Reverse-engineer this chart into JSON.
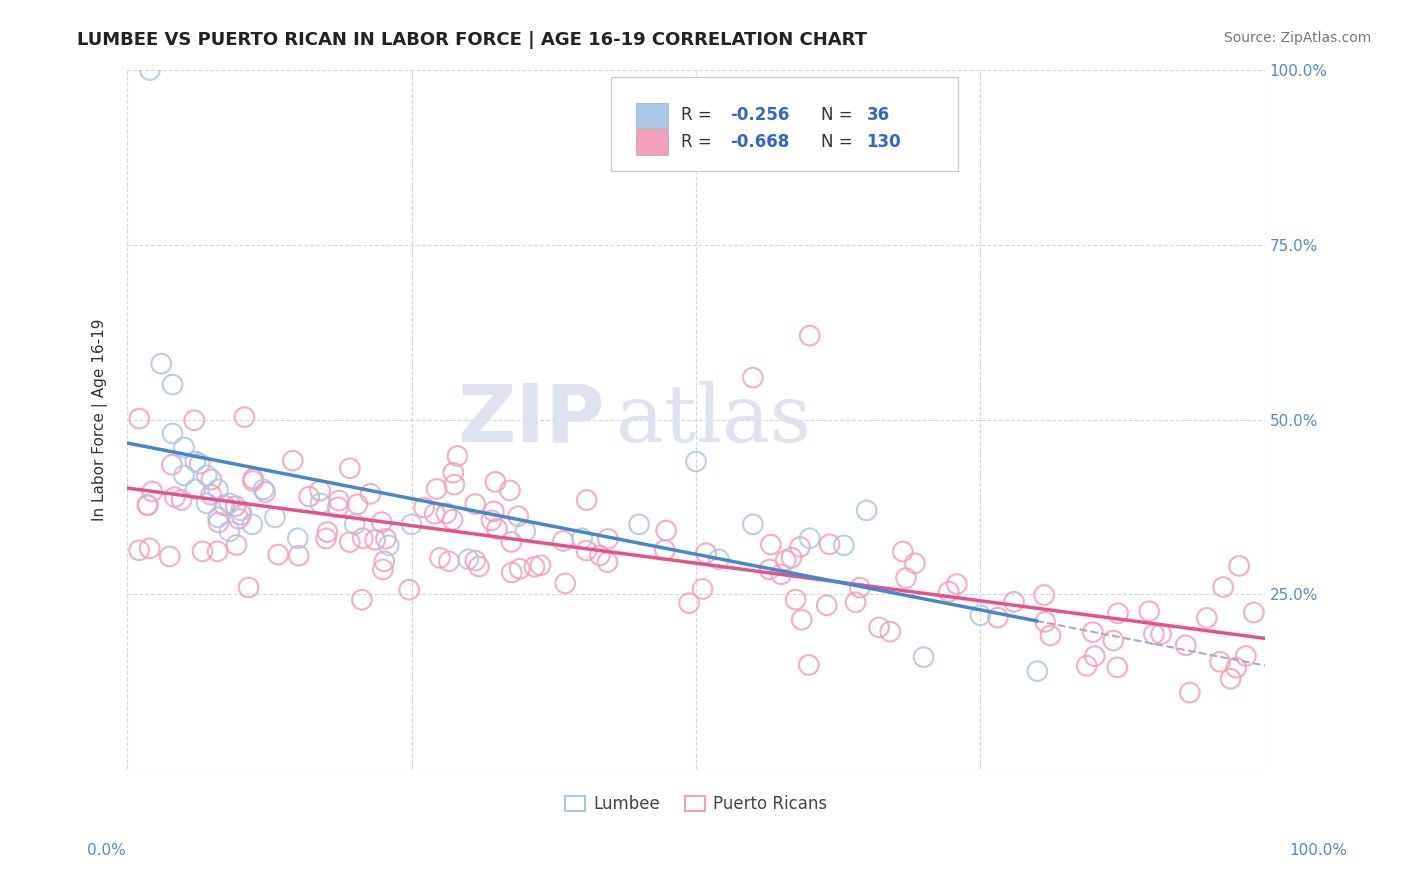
{
  "title": "LUMBEE VS PUERTO RICAN IN LABOR FORCE | AGE 16-19 CORRELATION CHART",
  "source_text": "Source: ZipAtlas.com",
  "ylabel": "In Labor Force | Age 16-19",
  "lumbee_R": -0.256,
  "lumbee_N": 36,
  "pr_R": -0.668,
  "pr_N": 130,
  "lumbee_color": "#a8c8e8",
  "pr_color": "#f4a0b8",
  "lumbee_line_color": "#4488cc",
  "pr_line_color": "#e8508a",
  "dashed_line_color": "#aaaacc",
  "background_color": "#ffffff",
  "grid_color": "#cccccc",
  "watermark_color": "#dde4f0",
  "ylim": [
    0.0,
    1.0
  ],
  "xlim": [
    0.0,
    1.0
  ]
}
